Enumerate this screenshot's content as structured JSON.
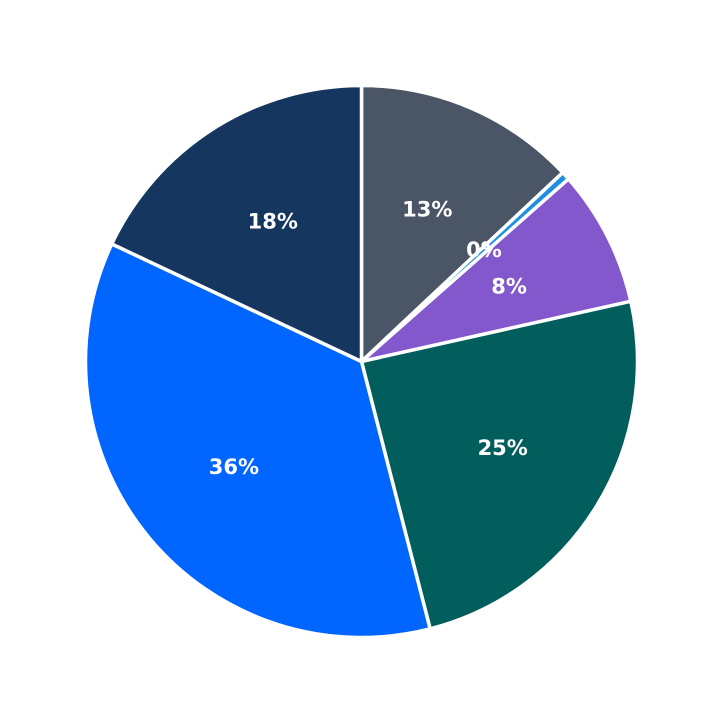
{
  "chart_data": {
    "type": "pie",
    "title": "",
    "start": "top",
    "direction": "clockwise",
    "slices": [
      {
        "value": 13.0,
        "label": "13%",
        "color": "#4a5565"
      },
      {
        "value": 0.5,
        "label": "0%",
        "color": "#1f8fe0"
      },
      {
        "value": 8.0,
        "label": "8%",
        "color": "#8458cd"
      },
      {
        "value": 24.5,
        "label": "25%",
        "color": "#025e5c"
      },
      {
        "value": 36.0,
        "label": "36%",
        "color": "#0066ff"
      },
      {
        "value": 18.0,
        "label": "18%",
        "color": "#15375f"
      }
    ]
  }
}
